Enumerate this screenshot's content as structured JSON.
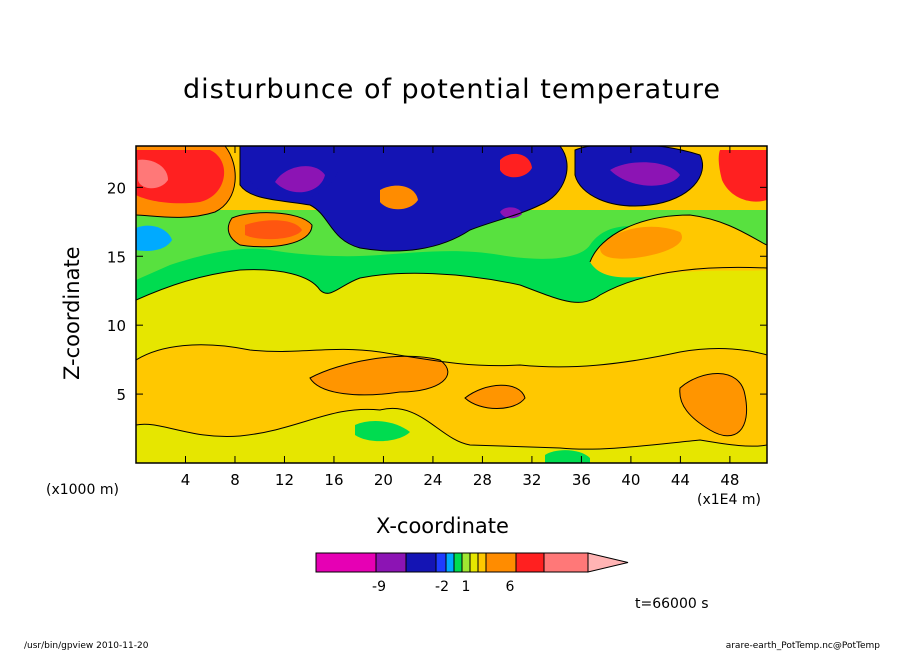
{
  "chart_data": {
    "type": "heatmap",
    "title": "disturbunce of potential temperature",
    "xlabel": "X-coordinate",
    "ylabel": "Z-coordinate",
    "x_unit_label": "(x1000 m)",
    "x_unit_label2": "(x1E4 m)",
    "xlim": [
      0,
      51
    ],
    "ylim": [
      0,
      23
    ],
    "x_ticks": [
      4,
      8,
      12,
      16,
      20,
      24,
      28,
      32,
      36,
      40,
      44,
      48
    ],
    "y_ticks": [
      5,
      10,
      15,
      20
    ],
    "colorbar": {
      "colors": [
        "#e600b4",
        "#8c14b4",
        "#1414b4",
        "#1e3cff",
        "#00aaff",
        "#00dc50",
        "#a0e632",
        "#e6e600",
        "#ffc800",
        "#ff8c00",
        "#ff2020",
        "#ff7878",
        "#ffb4b4"
      ],
      "tick_labels": [
        "-9",
        "-2",
        "1",
        "6"
      ]
    },
    "annotation": "t=66000 s"
  },
  "footer": {
    "left": "/usr/bin/gpview  2010-11-20",
    "right": "arare-earth_PotTemp.nc@PotTemp"
  }
}
